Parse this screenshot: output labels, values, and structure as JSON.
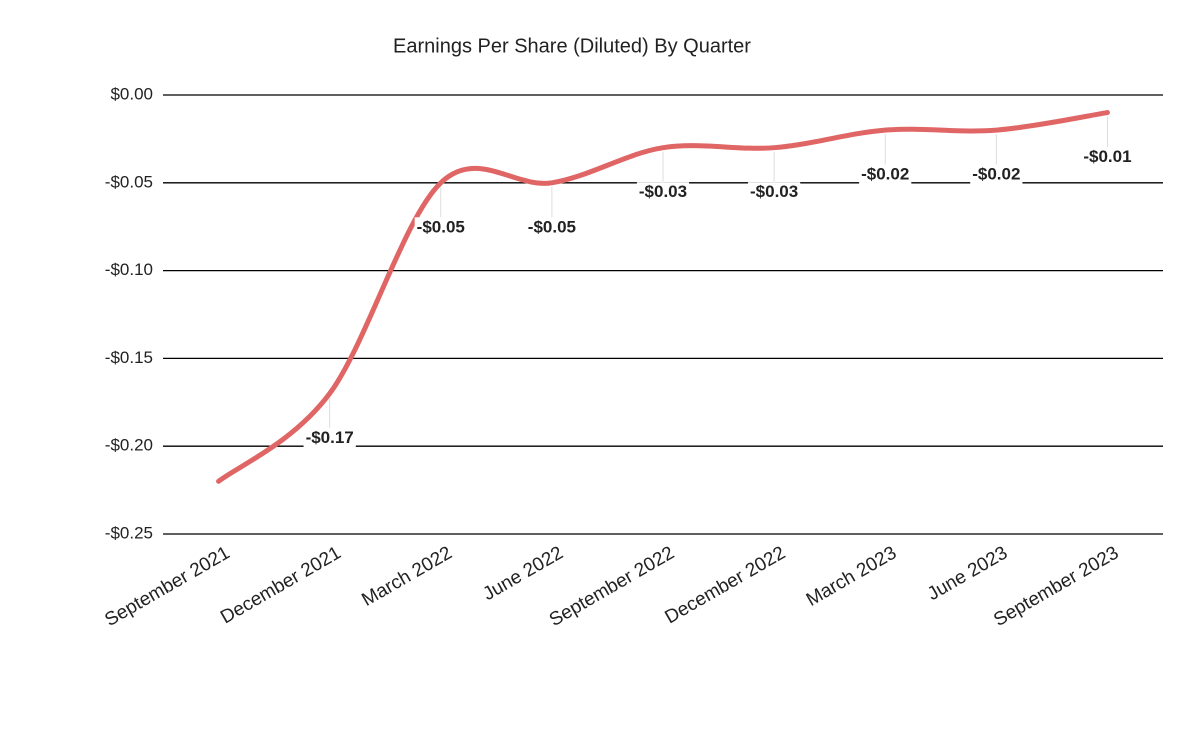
{
  "chart_data": {
    "type": "line",
    "title": "Earnings Per Share (Diluted) By Quarter",
    "categories": [
      "September 2021",
      "December 2021",
      "March 2022",
      "June 2022",
      "September 2022",
      "December 2022",
      "March 2023",
      "June 2023",
      "September 2023"
    ],
    "series": [
      {
        "name": "EPS (Diluted)",
        "color": "#e06666",
        "values": [
          -0.22,
          -0.17,
          -0.05,
          -0.05,
          -0.03,
          -0.03,
          -0.02,
          -0.02,
          -0.01
        ],
        "value_labels": [
          null,
          "-$0.17",
          "-$0.05",
          "-$0.05",
          "-$0.03",
          "-$0.03",
          "-$0.02",
          "-$0.02",
          "-$0.01"
        ]
      }
    ],
    "ylim": [
      -0.25,
      0
    ],
    "yticks": [
      {
        "value": 0,
        "label": "$0.00"
      },
      {
        "value": -0.05,
        "label": "-$0.05"
      },
      {
        "value": -0.1,
        "label": "-$0.10"
      },
      {
        "value": -0.15,
        "label": "-$0.15"
      },
      {
        "value": -0.2,
        "label": "-$0.20"
      },
      {
        "value": -0.25,
        "label": "-$0.25"
      }
    ],
    "grid": true,
    "smooth": true
  }
}
